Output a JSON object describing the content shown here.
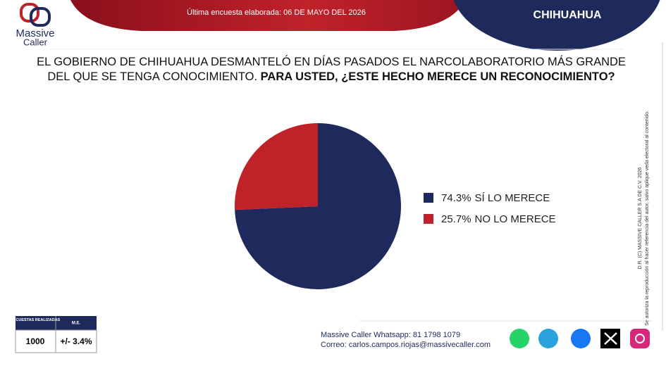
{
  "header": {
    "brand_top": "Massive",
    "brand_bottom": "Caller",
    "survey_date": "Última encuesta elaborada: 06 DE MAYO DEL 2026",
    "region": "CHIHUAHUA",
    "question_lead": "EL GOBIERNO DE CHIHUAHUA DESMANTELÓ EN DÍAS PASADOS EL NARCOLABORATORIO MÁS GRANDE DEL QUE SE TENGA CONOCIMIENTO.",
    "question_bold": "PARA USTED, ¿ESTE HECHO MERECE UN RECONOCIMIENTO?"
  },
  "chart_data": {
    "type": "pie",
    "categories": [
      "SÍ LO MERECE",
      "NO LO MERECE"
    ],
    "values": [
      74.3,
      25.7
    ],
    "value_labels": [
      "74.3%",
      "25.7%"
    ],
    "colors": [
      "#1f2a5c",
      "#c0222a"
    ],
    "legend": "right"
  },
  "side_note": {
    "copyright": "D.R. (C) MASSIVE CALLER S.A DE C.V. 2026",
    "permission": "Se autoriza la reproducción al hacer referencia del autor, salvo aplique veda electoral al contenido."
  },
  "table": {
    "headers": [
      "ENCUESTAS REALIZADAS",
      "M.E."
    ],
    "rows": [
      [
        1000,
        "+/- 3.4%"
      ]
    ]
  },
  "footer": {
    "whatsapp": "Massive Caller Whatsapp: 81 1798 1079",
    "email": "Correo: carlos.campos.riojas@massivecaller.com"
  }
}
